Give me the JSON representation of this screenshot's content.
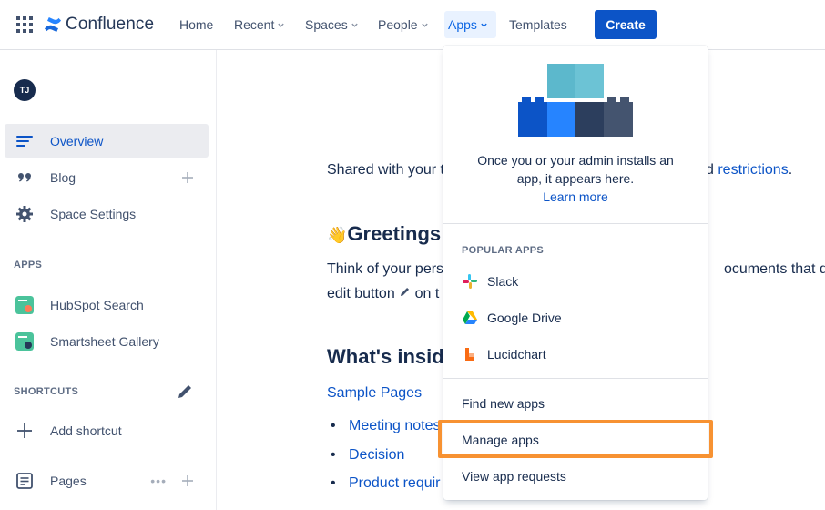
{
  "header": {
    "product": "Confluence",
    "nav": [
      {
        "label": "Home"
      },
      {
        "label": "Recent"
      },
      {
        "label": "Spaces"
      },
      {
        "label": "People"
      },
      {
        "label": "Apps"
      },
      {
        "label": "Templates"
      }
    ],
    "create_label": "Create",
    "accent": "#0c54c7"
  },
  "sidebar": {
    "avatar_initials": "TJ",
    "items": [
      {
        "label": "Overview"
      },
      {
        "label": "Blog"
      },
      {
        "label": "Space Settings"
      }
    ],
    "apps_heading": "APPS",
    "apps": [
      {
        "label": "HubSpot Search"
      },
      {
        "label": "Smartsheet Gallery"
      }
    ],
    "shortcuts_heading": "SHORTCUTS",
    "add_shortcut_label": "Add shortcut",
    "pages_label": "Pages",
    "pages_more": "•••"
  },
  "main": {
    "shared_prefix": "Shared with your t",
    "shared_suffix_pre": "d ",
    "restrictions_link": "restrictions",
    "shared_suffix_post": ".",
    "greeting_emoji": "👋",
    "greetings_heading": "Greetings!",
    "think_prefix": "Think of your pers",
    "think_suffix": "ocuments that do",
    "edit_prefix": "edit button",
    "edit_suffix": "on t",
    "whats_inside": "What's inside",
    "sample_pages": "Sample Pages",
    "bullets": [
      "Meeting notes",
      "Decision",
      "Product requir"
    ]
  },
  "apps_menu": {
    "empty_line1": "Once you or your admin installs an",
    "empty_line2": "app, it appears here.",
    "learn_more": "Learn more",
    "popular_heading": "POPULAR APPS",
    "popular": [
      {
        "label": "Slack"
      },
      {
        "label": "Google Drive"
      },
      {
        "label": "Lucidchart"
      }
    ],
    "find_new": "Find new apps",
    "manage": "Manage apps",
    "requests": "View app requests",
    "highlight_color": "#f79232"
  }
}
